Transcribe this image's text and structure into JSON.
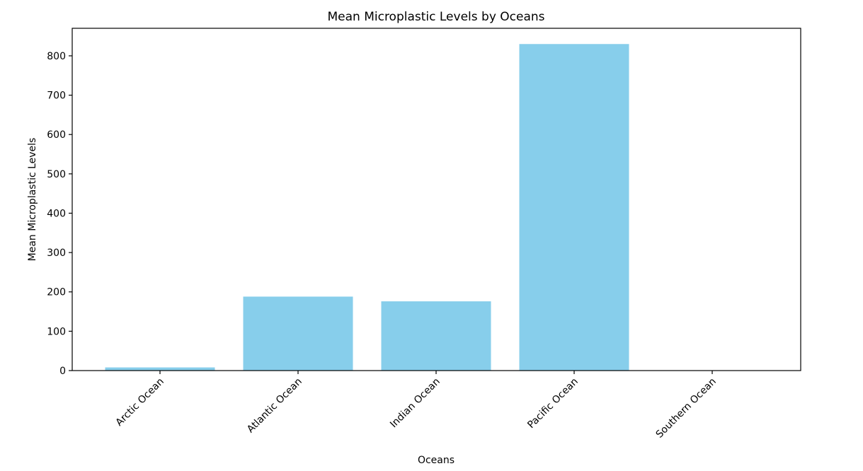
{
  "chart_data": {
    "type": "bar",
    "title": "Mean Microplastic Levels by Oceans",
    "xlabel": "Oceans",
    "ylabel": "Mean Microplastic Levels",
    "categories": [
      "Arctic Ocean",
      "Atlantic Ocean",
      "Indian Ocean",
      "Pacific Ocean",
      "Southern Ocean"
    ],
    "values": [
      8,
      188,
      176,
      830,
      0
    ],
    "ylim": [
      0,
      870
    ],
    "yticks": [
      0,
      100,
      200,
      300,
      400,
      500,
      600,
      700,
      800
    ],
    "grid": false,
    "bar_color": "#87CEEB"
  }
}
